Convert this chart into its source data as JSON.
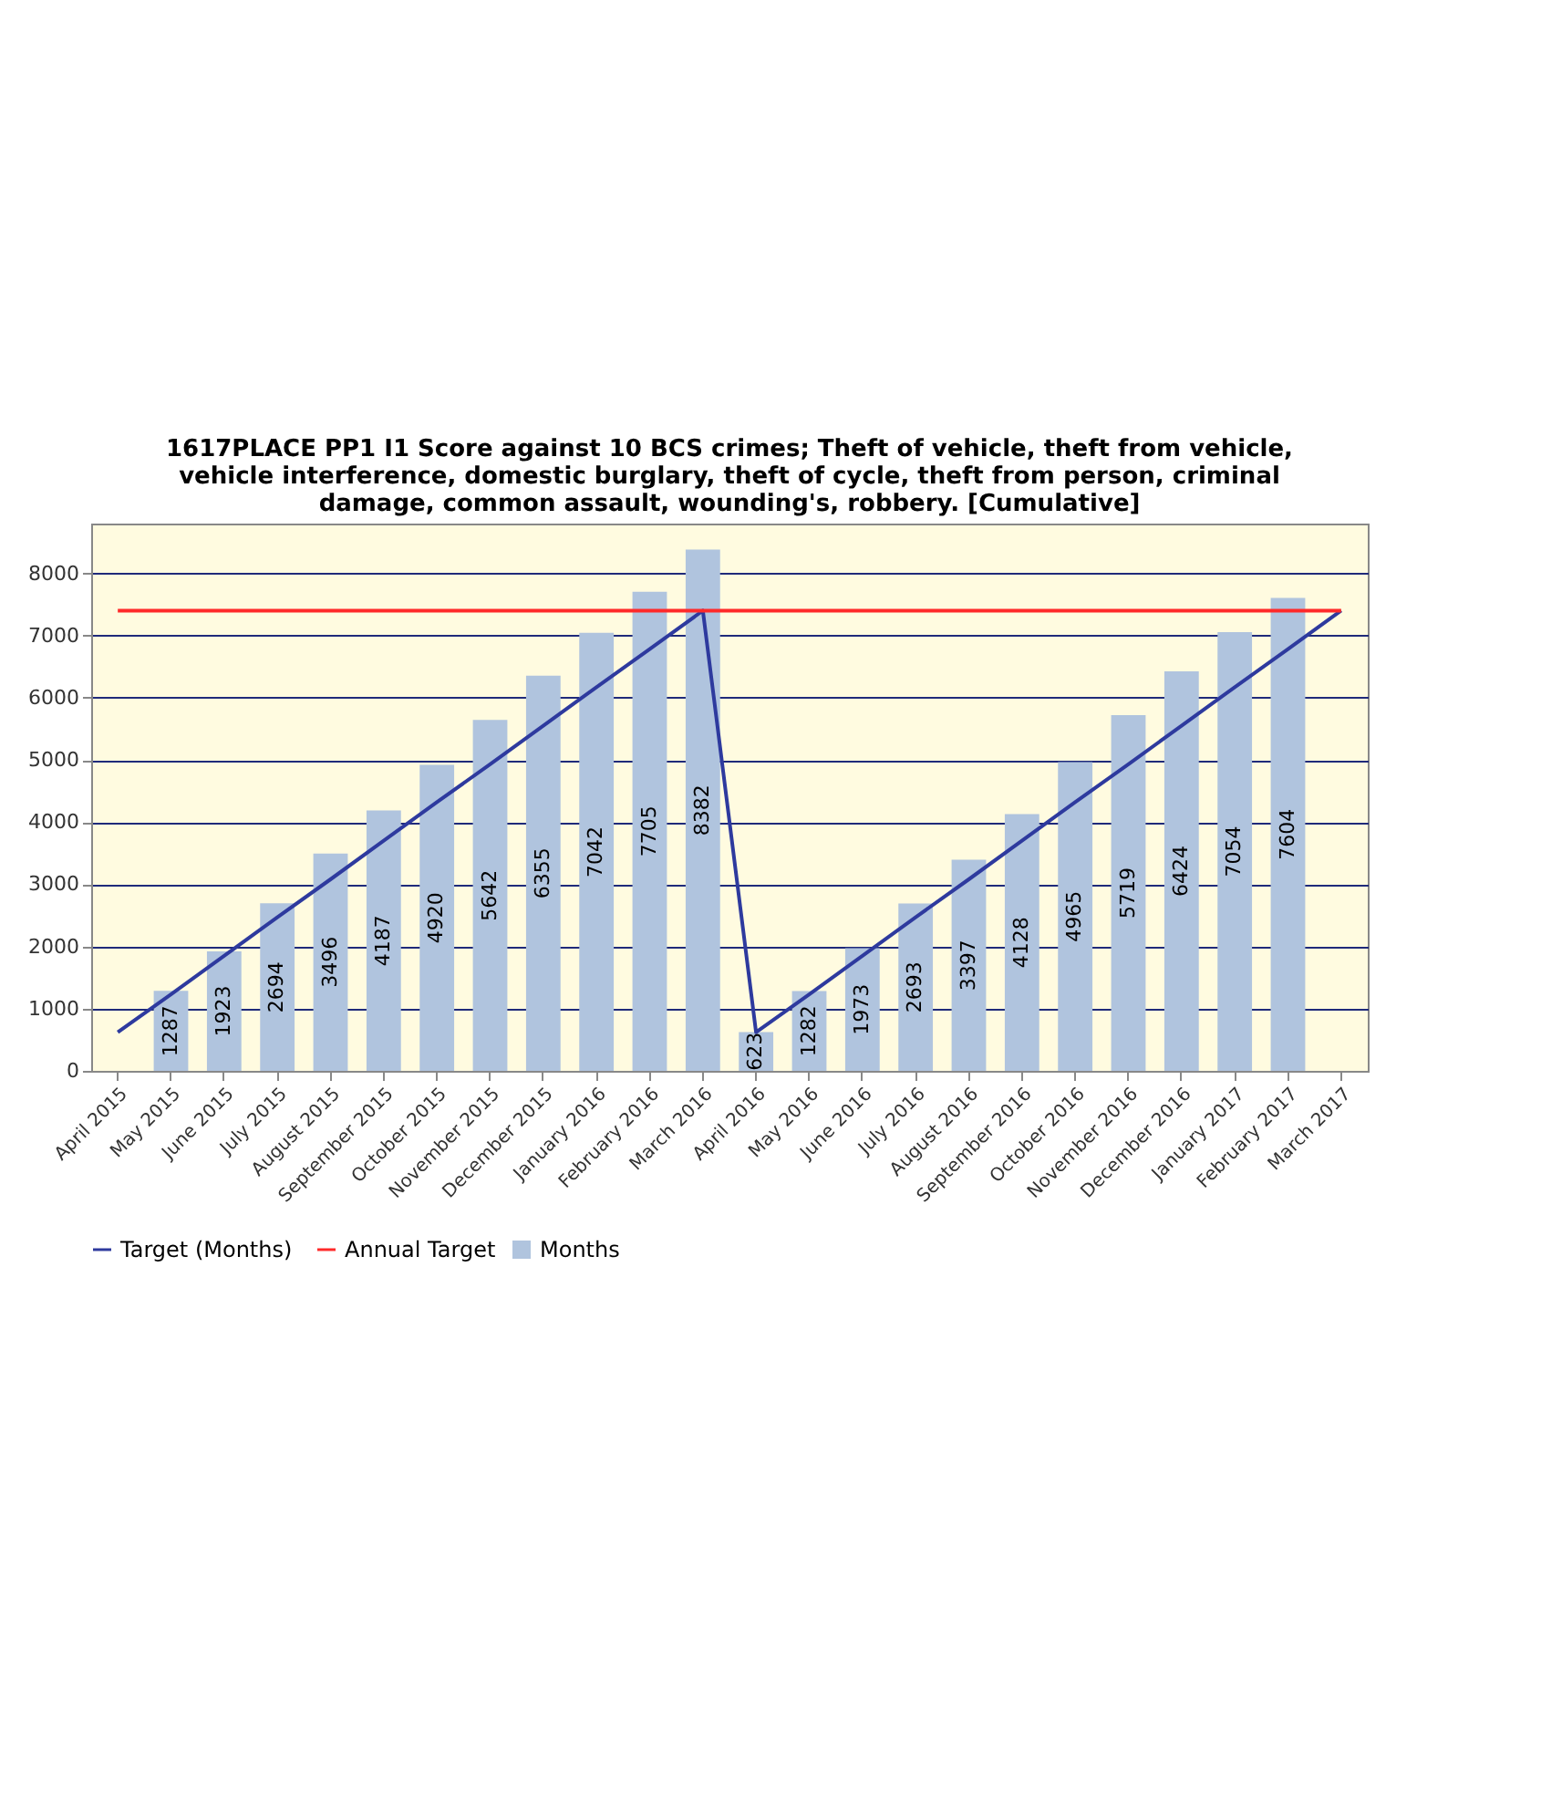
{
  "chart_data": {
    "type": "bar",
    "title": "1617PLACE PP1 I1 Score against 10 BCS crimes; Theft of vehicle, theft from vehicle, vehicle interference, domestic burglary, theft of cycle, theft from person, criminal damage, common assault, wounding's, robbery. [Cumulative]",
    "categories": [
      "April 2015",
      "May 2015",
      "June 2015",
      "July 2015",
      "August 2015",
      "September 2015",
      "October 2015",
      "November 2015",
      "December 2015",
      "January 2016",
      "February 2016",
      "March 2016",
      "April 2016",
      "May 2016",
      "June 2016",
      "July 2016",
      "August 2016",
      "September 2016",
      "October 2016",
      "November 2016",
      "December 2016",
      "January 2017",
      "February 2017",
      "March 2017"
    ],
    "series": [
      {
        "name": "Months",
        "color": "#b0c4de",
        "values": [
          null,
          1287,
          1923,
          2694,
          3496,
          4187,
          4920,
          5642,
          6355,
          7042,
          7705,
          8382,
          623,
          1282,
          1973,
          2693,
          3397,
          4128,
          4965,
          5719,
          6424,
          7054,
          7604,
          null
        ],
        "value_labels": [
          null,
          "1287",
          "1923",
          "2694",
          "3496",
          "4187",
          "4920",
          "5642",
          "6355",
          "7042",
          "7705",
          "8382",
          "623",
          "1282",
          "1973",
          "2693",
          "3397",
          "4128",
          "4965",
          "5719",
          "6424",
          "7054",
          "7604",
          null
        ]
      },
      {
        "name": "Target (Months)",
        "type": "line",
        "color": "#2e3a9e",
        "values": [
          620,
          1230,
          1850,
          2470,
          3080,
          3700,
          4320,
          4930,
          5550,
          6170,
          6780,
          7400,
          620,
          1230,
          1850,
          2470,
          3080,
          3700,
          4320,
          4930,
          5550,
          6170,
          6780,
          7400
        ]
      },
      {
        "name": "Annual Target",
        "type": "line",
        "color": "#ff2a2a",
        "values": [
          7400,
          7400,
          7400,
          7400,
          7400,
          7400,
          7400,
          7400,
          7400,
          7400,
          7400,
          7400,
          7400,
          7400,
          7400,
          7400,
          7400,
          7400,
          7400,
          7400,
          7400,
          7400,
          7400,
          7400
        ]
      }
    ],
    "ylim": [
      0,
      8800
    ],
    "yticks": [
      0,
      1000,
      2000,
      3000,
      4000,
      5000,
      6000,
      7000,
      8000
    ],
    "grid": "y",
    "legend": "bottom",
    "marker": "none",
    "line_style": "solid"
  }
}
